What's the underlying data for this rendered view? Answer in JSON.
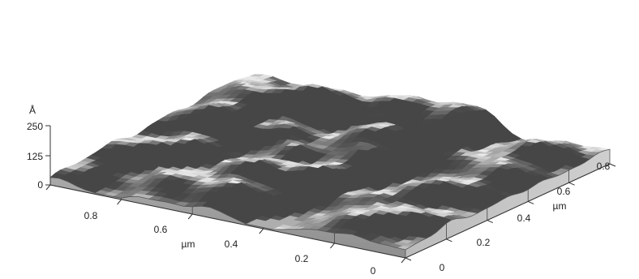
{
  "chart_data": {
    "type": "surface3d",
    "z_axis": {
      "unit": "Å",
      "ticks": [
        "0",
        "125",
        "250"
      ],
      "range": [
        0,
        250
      ]
    },
    "front_axis": {
      "label": "µm",
      "ticks": [
        "0.8",
        "0.6",
        "0.4",
        "0.2",
        "0"
      ],
      "range": [
        0,
        1
      ]
    },
    "right_axis": {
      "label": "µm",
      "ticks": [
        "0",
        "0.2",
        "0.4",
        "0.6",
        "0.8"
      ],
      "range": [
        0,
        1
      ]
    },
    "surface": "rough grain topography, peaks up to about 250 Å",
    "colors": {
      "surface": "#9a9a9a",
      "side_wall": "#a8a8a8",
      "floor": "#e6e6e6",
      "axis": "#333333"
    }
  }
}
